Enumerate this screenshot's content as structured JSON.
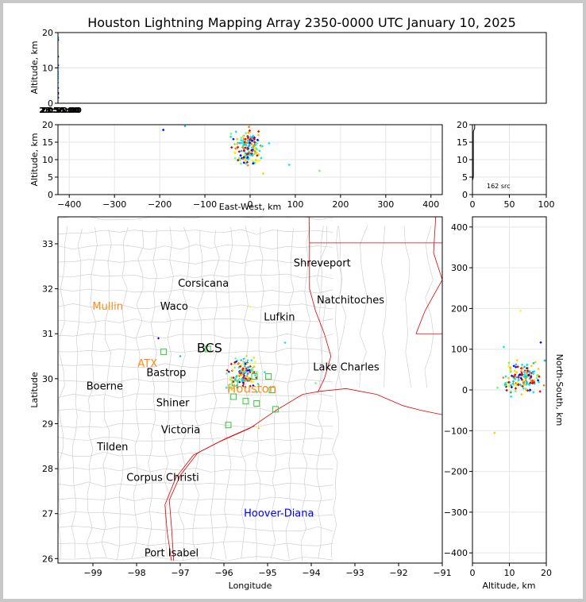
{
  "title": "Houston Lightning Mapping Array 2350-0000 UTC January 10, 2025",
  "colors": {
    "border": "#d0d0d0",
    "coast": "#e00000",
    "city_black": "#000000",
    "city_orange": "#ff8c1a",
    "city_blue": "#0000ff",
    "station": "#33cc33",
    "sources": [
      "#0000ff",
      "#00bfff",
      "#00e5ff",
      "#66ff66",
      "#ffff00",
      "#ffcc00",
      "#ff8000",
      "#ff0000",
      "#cc0000"
    ]
  },
  "chart_data": [
    {
      "panel": "time-height",
      "type": "scatter",
      "ylabel": "Altitude, km",
      "ylim": [
        0,
        20
      ],
      "yticks": [
        "0",
        "10",
        "20"
      ],
      "xtick_labels": [
        "23:50:00",
        "23:55:00",
        "00:00:00"
      ],
      "grid": true
    },
    {
      "panel": "east-west-height",
      "type": "scatter",
      "xlabel": "East-West, km",
      "ylabel": "Altitude, km",
      "xlim": [
        -425,
        425
      ],
      "ylim": [
        0,
        20
      ],
      "xticks": [
        "−400",
        "−300",
        "−200",
        "−100",
        "0",
        "100",
        "200",
        "300",
        "400"
      ],
      "yticks": [
        "0",
        "5",
        "10",
        "15",
        "20"
      ],
      "grid": true
    },
    {
      "panel": "histogram",
      "type": "line",
      "xlim": [
        0,
        100
      ],
      "ylim": [
        0,
        20
      ],
      "xticks": [
        "0",
        "50",
        "100"
      ],
      "yticks": [
        "0",
        "5",
        "10",
        "15",
        "20"
      ],
      "annotation": "162 src",
      "grid": true
    },
    {
      "panel": "plan-view",
      "type": "scatter",
      "xlabel": "Longitude",
      "ylabel": "Latitude",
      "xlim": [
        -99.8,
        -91.0
      ],
      "ylim": [
        25.9,
        33.6
      ],
      "xticks": [
        "−99",
        "−98",
        "−97",
        "−96",
        "−95",
        "−94",
        "−93",
        "−92",
        "−91"
      ],
      "yticks": [
        "26",
        "27",
        "28",
        "29",
        "30",
        "31",
        "32",
        "33"
      ],
      "grid": false,
      "cities": [
        {
          "name": "Shreveport",
          "lon": -93.75,
          "lat": 32.57,
          "color": "black",
          "size": 13
        },
        {
          "name": "Corsicana",
          "lon": -96.47,
          "lat": 32.12,
          "color": "black",
          "size": 13
        },
        {
          "name": "Natchitoches",
          "lon": -93.1,
          "lat": 31.75,
          "color": "black",
          "size": 13
        },
        {
          "name": "Mullin",
          "lon": -98.66,
          "lat": 31.6,
          "color": "orange",
          "size": 13
        },
        {
          "name": "Waco",
          "lon": -97.14,
          "lat": 31.6,
          "color": "black",
          "size": 13
        },
        {
          "name": "Lufkin",
          "lon": -94.73,
          "lat": 31.37,
          "color": "black",
          "size": 13
        },
        {
          "name": "BCS",
          "lon": -96.33,
          "lat": 30.66,
          "color": "black",
          "size": 16
        },
        {
          "name": "ATX",
          "lon": -97.75,
          "lat": 30.33,
          "color": "orange",
          "size": 13
        },
        {
          "name": "Bastrop",
          "lon": -97.32,
          "lat": 30.13,
          "color": "black",
          "size": 13
        },
        {
          "name": "Lake Charles",
          "lon": -93.2,
          "lat": 30.25,
          "color": "black",
          "size": 13
        },
        {
          "name": "Boerne",
          "lon": -98.73,
          "lat": 29.83,
          "color": "black",
          "size": 13
        },
        {
          "name": "Houston",
          "lon": -95.36,
          "lat": 29.76,
          "color": "orange",
          "size": 15
        },
        {
          "name": "Shiner",
          "lon": -97.17,
          "lat": 29.46,
          "color": "black",
          "size": 13
        },
        {
          "name": "Victoria",
          "lon": -96.99,
          "lat": 28.86,
          "color": "black",
          "size": 13
        },
        {
          "name": "Tilden",
          "lon": -98.55,
          "lat": 28.48,
          "color": "black",
          "size": 13
        },
        {
          "name": "Corpus Christi",
          "lon": -97.4,
          "lat": 27.8,
          "color": "black",
          "size": 13
        },
        {
          "name": "Hoover-Diana",
          "lon": -94.74,
          "lat": 27.0,
          "color": "blue",
          "size": 13
        },
        {
          "name": "Port Isabel",
          "lon": -97.2,
          "lat": 26.12,
          "color": "black",
          "size": 13
        }
      ],
      "stations": [
        [
          -97.38,
          30.6
        ],
        [
          -96.37,
          30.66
        ],
        [
          -95.75,
          29.9
        ],
        [
          -95.3,
          30.05
        ],
        [
          -94.98,
          30.05
        ],
        [
          -95.5,
          29.5
        ],
        [
          -95.25,
          29.45
        ],
        [
          -95.78,
          29.6
        ],
        [
          -94.9,
          29.75
        ],
        [
          -94.82,
          29.32
        ],
        [
          -95.9,
          28.97
        ]
      ]
    },
    {
      "panel": "north-south-height",
      "type": "scatter",
      "xlabel": "Altitude, km",
      "ylabel": "North-South, km",
      "xlim": [
        0,
        20
      ],
      "ylim": [
        -425,
        425
      ],
      "xticks": [
        "0",
        "10",
        "20"
      ],
      "yticks": [
        "−400",
        "−300",
        "−200",
        "−100",
        "0",
        "100",
        "200",
        "300",
        "400"
      ],
      "grid": true
    }
  ],
  "sources_note": "162 src"
}
